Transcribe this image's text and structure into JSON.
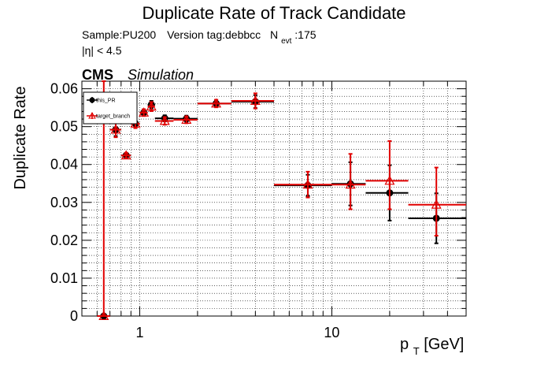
{
  "chart_data": {
    "type": "scatter",
    "title": "Duplicate Rate of Track Candidate",
    "info_line1": {
      "sample": "Sample:PU200",
      "version": "Version tag:debbcc",
      "nevt_symbol": "N",
      "nevt_subscript": "evt",
      "nevt_value": ":175"
    },
    "info_line2": "|η| < 4.5",
    "cms_label": "CMS",
    "simulation_label": "Simulation",
    "ylabel": "Duplicate Rate",
    "xlabel_main": "p",
    "xlabel_sub": "T",
    "xlabel_unit": " [GeV]",
    "xscale": "log",
    "xlim": [
      0.5,
      50
    ],
    "ylim": [
      0,
      0.062
    ],
    "grid": true,
    "legend_position": "top-left",
    "x_tick_labels": [
      {
        "value": 1,
        "label": "1"
      },
      {
        "value": 10,
        "label": "10"
      }
    ],
    "y_tick_labels": [
      {
        "value": 0,
        "label": "0"
      },
      {
        "value": 0.01,
        "label": "0.01"
      },
      {
        "value": 0.02,
        "label": "0.02"
      },
      {
        "value": 0.03,
        "label": "0.03"
      },
      {
        "value": 0.04,
        "label": "0.04"
      },
      {
        "value": 0.05,
        "label": "0.05"
      },
      {
        "value": 0.06,
        "label": "0.06"
      }
    ],
    "series": [
      {
        "name": "this_PR",
        "color": "#000000",
        "marker": "circle",
        "points": [
          {
            "x": 0.65,
            "xlo": 0.6,
            "xhi": 0.7,
            "y": 0.0,
            "ylo": 0.0,
            "yhi": 0.0
          },
          {
            "x": 0.75,
            "xlo": 0.7,
            "xhi": 0.8,
            "y": 0.0492,
            "ylo": 0.0475,
            "yhi": 0.0509
          },
          {
            "x": 0.85,
            "xlo": 0.8,
            "xhi": 0.9,
            "y": 0.0424,
            "ylo": 0.0418,
            "yhi": 0.043
          },
          {
            "x": 0.95,
            "xlo": 0.9,
            "xhi": 1.0,
            "y": 0.0508,
            "ylo": 0.0498,
            "yhi": 0.0518
          },
          {
            "x": 1.05,
            "xlo": 1.0,
            "xhi": 1.1,
            "y": 0.0537,
            "ylo": 0.053,
            "yhi": 0.0544
          },
          {
            "x": 1.15,
            "xlo": 1.1,
            "xhi": 1.2,
            "y": 0.0558,
            "ylo": 0.0548,
            "yhi": 0.0568
          },
          {
            "x": 1.35,
            "xlo": 1.2,
            "xhi": 1.5,
            "y": 0.0522,
            "ylo": 0.0514,
            "yhi": 0.053
          },
          {
            "x": 1.75,
            "xlo": 1.5,
            "xhi": 2.0,
            "y": 0.0521,
            "ylo": 0.0513,
            "yhi": 0.0529
          },
          {
            "x": 2.5,
            "xlo": 2.0,
            "xhi": 3.0,
            "y": 0.0561,
            "ylo": 0.0552,
            "yhi": 0.057
          },
          {
            "x": 4.0,
            "xlo": 3.0,
            "xhi": 5.0,
            "y": 0.0566,
            "ylo": 0.0549,
            "yhi": 0.0583
          },
          {
            "x": 7.5,
            "xlo": 5.0,
            "xhi": 10.0,
            "y": 0.0345,
            "ylo": 0.0317,
            "yhi": 0.0373
          },
          {
            "x": 12.5,
            "xlo": 10.0,
            "xhi": 15.0,
            "y": 0.0349,
            "ylo": 0.0292,
            "yhi": 0.0406
          },
          {
            "x": 20.0,
            "xlo": 15.0,
            "xhi": 25.0,
            "y": 0.0325,
            "ylo": 0.0252,
            "yhi": 0.0398
          },
          {
            "x": 35.0,
            "xlo": 25.0,
            "xhi": 50.0,
            "y": 0.0258,
            "ylo": 0.0192,
            "yhi": 0.0324
          }
        ]
      },
      {
        "name": "target_branch",
        "color": "#e00000",
        "marker": "triangle",
        "points": [
          {
            "x": 0.65,
            "xlo": 0.6,
            "xhi": 0.7,
            "y": 0.0,
            "ylo": 0.0,
            "yhi": 0.062
          },
          {
            "x": 0.75,
            "xlo": 0.7,
            "xhi": 0.8,
            "y": 0.0492,
            "ylo": 0.0472,
            "yhi": 0.0512
          },
          {
            "x": 0.85,
            "xlo": 0.8,
            "xhi": 0.9,
            "y": 0.0424,
            "ylo": 0.0417,
            "yhi": 0.0431
          },
          {
            "x": 0.95,
            "xlo": 0.9,
            "xhi": 1.0,
            "y": 0.0508,
            "ylo": 0.0496,
            "yhi": 0.052
          },
          {
            "x": 1.05,
            "xlo": 1.0,
            "xhi": 1.1,
            "y": 0.0537,
            "ylo": 0.0528,
            "yhi": 0.0546
          },
          {
            "x": 1.15,
            "xlo": 1.1,
            "xhi": 1.2,
            "y": 0.0553,
            "ylo": 0.0541,
            "yhi": 0.0565
          },
          {
            "x": 1.35,
            "xlo": 1.2,
            "xhi": 1.5,
            "y": 0.0515,
            "ylo": 0.0505,
            "yhi": 0.0525
          },
          {
            "x": 1.75,
            "xlo": 1.5,
            "xhi": 2.0,
            "y": 0.0518,
            "ylo": 0.0509,
            "yhi": 0.0527
          },
          {
            "x": 2.5,
            "xlo": 2.0,
            "xhi": 3.0,
            "y": 0.0561,
            "ylo": 0.0551,
            "yhi": 0.0571
          },
          {
            "x": 4.0,
            "xlo": 3.0,
            "xhi": 5.0,
            "y": 0.0568,
            "ylo": 0.0548,
            "yhi": 0.0588
          },
          {
            "x": 7.5,
            "xlo": 5.0,
            "xhi": 10.0,
            "y": 0.0347,
            "ylo": 0.0313,
            "yhi": 0.0381
          },
          {
            "x": 12.5,
            "xlo": 10.0,
            "xhi": 15.0,
            "y": 0.0347,
            "ylo": 0.0282,
            "yhi": 0.0428
          },
          {
            "x": 20.0,
            "xlo": 15.0,
            "xhi": 25.0,
            "y": 0.0357,
            "ylo": 0.0282,
            "yhi": 0.0462
          },
          {
            "x": 35.0,
            "xlo": 25.0,
            "xhi": 50.0,
            "y": 0.0294,
            "ylo": 0.0212,
            "yhi": 0.0392
          }
        ]
      }
    ]
  }
}
